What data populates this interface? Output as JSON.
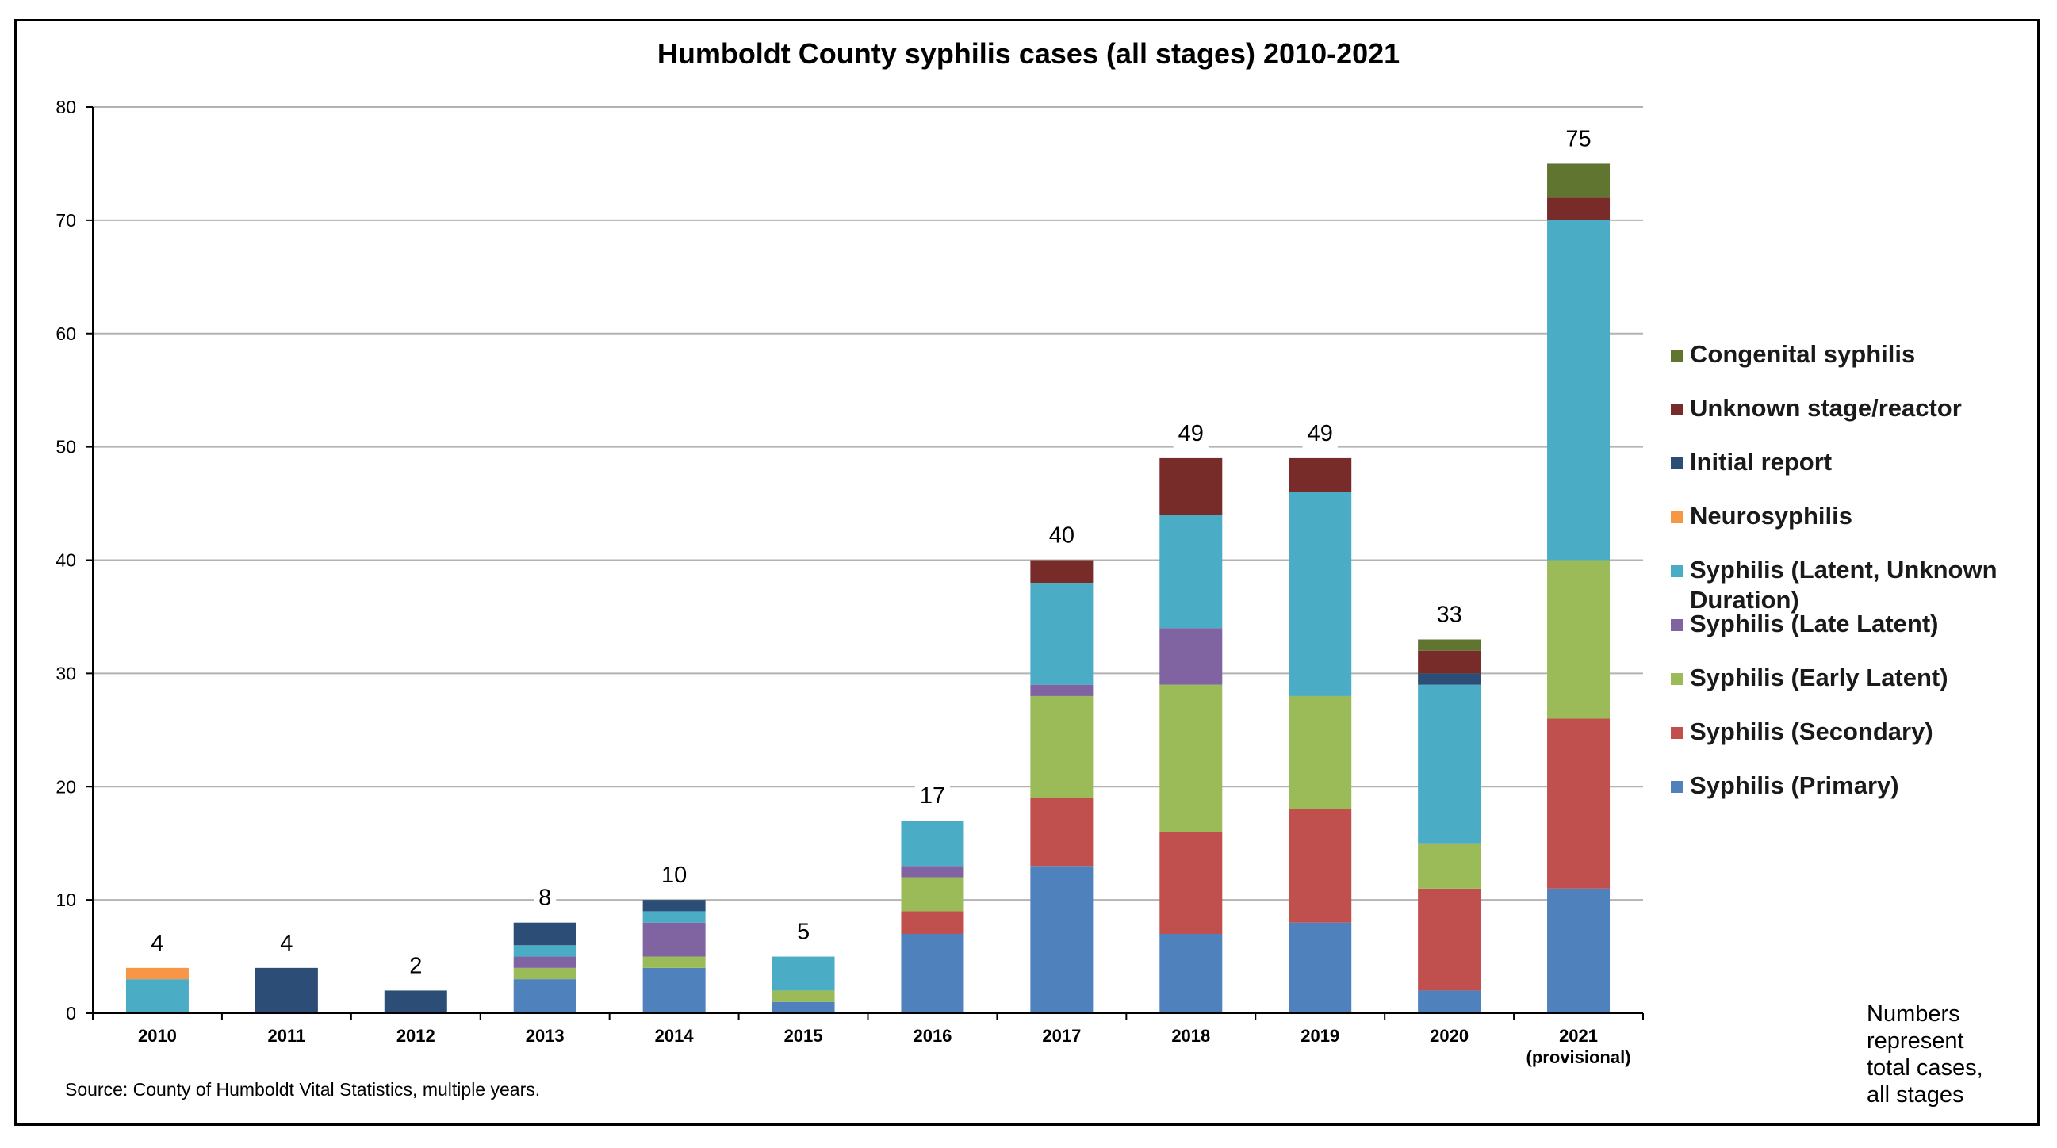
{
  "chart_data": {
    "type": "bar",
    "stacked": true,
    "title": "Humboldt County syphilis cases (all stages) 2010-2021",
    "xlabel": "",
    "ylabel": "",
    "ylim": [
      0,
      80
    ],
    "yticks": [
      0,
      10,
      20,
      30,
      40,
      50,
      60,
      70,
      80
    ],
    "grid": true,
    "legend_position": "right",
    "categories": [
      "2010",
      "2011",
      "2012",
      "2013",
      "2014",
      "2015",
      "2016",
      "2017",
      "2018",
      "2019",
      "2020",
      "2021"
    ],
    "category_sublabels": [
      "",
      "",
      "",
      "",
      "",
      "",
      "",
      "",
      "",
      "",
      "",
      "(provisional)"
    ],
    "totals": [
      4,
      4,
      2,
      8,
      10,
      5,
      17,
      40,
      49,
      49,
      33,
      75
    ],
    "series": [
      {
        "name": "Syphilis (Primary)",
        "color": "#4f81bd",
        "values": [
          0,
          0,
          0,
          3,
          4,
          1,
          7,
          13,
          7,
          8,
          2,
          11
        ]
      },
      {
        "name": "Syphilis (Secondary)",
        "color": "#c0504d",
        "values": [
          0,
          0,
          0,
          0,
          0,
          0,
          2,
          6,
          9,
          10,
          9,
          15
        ]
      },
      {
        "name": "Syphilis (Early Latent)",
        "color": "#9bbb59",
        "values": [
          0,
          0,
          0,
          1,
          1,
          1,
          3,
          9,
          13,
          10,
          4,
          14
        ]
      },
      {
        "name": "Syphilis (Late Latent)",
        "color": "#8064a2",
        "values": [
          0,
          0,
          0,
          1,
          3,
          0,
          1,
          1,
          5,
          0,
          0,
          0
        ]
      },
      {
        "name": "Syphilis (Latent, Unknown Duration)",
        "color": "#4bacc6",
        "values": [
          3,
          0,
          0,
          1,
          1,
          3,
          4,
          9,
          10,
          18,
          14,
          30
        ]
      },
      {
        "name": "Neurosyphilis",
        "color": "#f79646",
        "values": [
          1,
          0,
          0,
          0,
          0,
          0,
          0,
          0,
          0,
          0,
          0,
          0
        ]
      },
      {
        "name": "Initial report",
        "color": "#2c4d75",
        "values": [
          0,
          4,
          2,
          2,
          1,
          0,
          0,
          0,
          0,
          0,
          1,
          0
        ]
      },
      {
        "name": "Unknown stage/reactor",
        "color": "#772c2a",
        "values": [
          0,
          0,
          0,
          0,
          0,
          0,
          0,
          2,
          5,
          3,
          2,
          2
        ]
      },
      {
        "name": "Congenital syphilis",
        "color": "#5f7530",
        "values": [
          0,
          0,
          0,
          0,
          0,
          0,
          0,
          0,
          0,
          0,
          1,
          3
        ]
      }
    ],
    "source": "Source:  County of Humboldt Vital Statistics, multiple years.",
    "note_lines": [
      "Numbers",
      "represent",
      "total cases,",
      "all stages"
    ]
  }
}
